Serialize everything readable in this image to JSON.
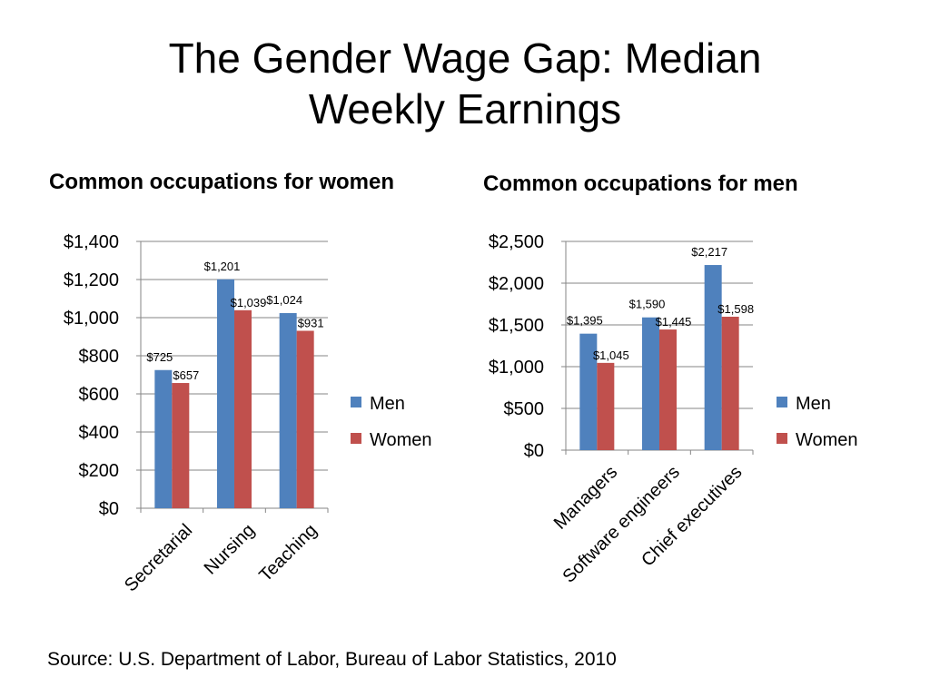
{
  "slide": {
    "title": "The Gender Wage Gap: Median Weekly Earnings",
    "source": "Source: U.S. Department of Labor, Bureau of Labor Statistics, 2010"
  },
  "colors": {
    "men": "#4f81bd",
    "women": "#c0504d",
    "axis": "#868686"
  },
  "chart_data": [
    {
      "type": "bar",
      "title": "Common occupations for women",
      "categories": [
        "Secretarial",
        "Nursing",
        "Teaching"
      ],
      "series": [
        {
          "name": "Men",
          "values": [
            725,
            1201,
            1024
          ],
          "labels": [
            "$725",
            "$1,201",
            "$1,024"
          ]
        },
        {
          "name": "Women",
          "values": [
            657,
            1039,
            931
          ],
          "labels": [
            "$657",
            "$1,039",
            "$931"
          ]
        }
      ],
      "ylim": [
        0,
        1400
      ],
      "yticks": [
        0,
        200,
        400,
        600,
        800,
        1000,
        1200,
        1400
      ],
      "ytick_labels": [
        "$0",
        "$200",
        "$400",
        "$600",
        "$800",
        "$1,000",
        "$1,200",
        "$1,400"
      ],
      "grid": true,
      "legend": "right"
    },
    {
      "type": "bar",
      "title": "Common occupations for men",
      "categories": [
        "Managers",
        "Software engineers",
        "Chief executives"
      ],
      "series": [
        {
          "name": "Men",
          "values": [
            1395,
            1590,
            2217
          ],
          "labels": [
            "$1,395",
            "$1,590",
            "$2,217"
          ]
        },
        {
          "name": "Women",
          "values": [
            1045,
            1445,
            1598
          ],
          "labels": [
            "$1,045",
            "$1,445",
            "$1,598"
          ]
        }
      ],
      "ylim": [
        0,
        2500
      ],
      "yticks": [
        0,
        500,
        1000,
        1500,
        2000,
        2500
      ],
      "ytick_labels": [
        "$0",
        "$500",
        "$1,000",
        "$1,500",
        "$2,000",
        "$2,500"
      ],
      "grid": true,
      "legend": "right"
    }
  ]
}
